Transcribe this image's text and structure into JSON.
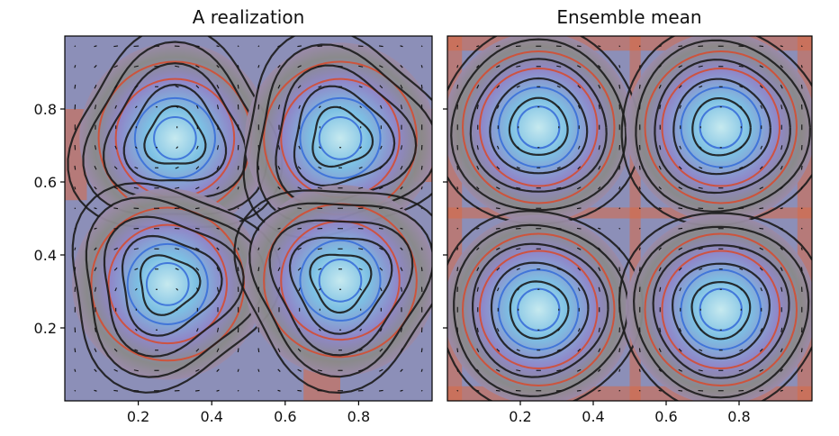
{
  "chart_data": [
    {
      "type": "heatmap",
      "title": "A realization",
      "xlim": [
        0,
        1
      ],
      "ylim": [
        0,
        1
      ],
      "xticks": [
        0.2,
        0.4,
        0.6,
        0.8
      ],
      "yticks": [
        0.2,
        0.4,
        0.6,
        0.8
      ],
      "xtick_labels": [
        "0.2",
        "0.4",
        "0.6",
        "0.8"
      ],
      "ytick_labels": [
        "0.2",
        "0.4",
        "0.6",
        "0.8"
      ],
      "overlays": [
        "filled contours",
        "contour lines",
        "streamlines",
        "velocity arrows"
      ],
      "vortex_centers": [
        [
          0.3,
          0.72
        ],
        [
          0.75,
          0.72
        ],
        [
          0.28,
          0.32
        ],
        [
          0.75,
          0.33
        ]
      ]
    },
    {
      "type": "heatmap",
      "title": "Ensemble mean",
      "xlim": [
        0,
        1
      ],
      "ylim": [
        0,
        1
      ],
      "xticks": [
        0.2,
        0.4,
        0.6,
        0.8
      ],
      "yticks": [
        0.2,
        0.4,
        0.6,
        0.8
      ],
      "xtick_labels": [
        "0.2",
        "0.4",
        "0.6",
        "0.8"
      ],
      "ytick_labels": [],
      "overlays": [
        "filled contours",
        "contour lines",
        "streamlines",
        "velocity arrows"
      ],
      "vortex_centers": [
        [
          0.25,
          0.75
        ],
        [
          0.75,
          0.75
        ],
        [
          0.25,
          0.25
        ],
        [
          0.75,
          0.25
        ]
      ]
    }
  ],
  "colors": {
    "low": "#bfe9ef",
    "mid_low": "#5aa7dd",
    "mid": "#8f87c9",
    "mid_high": "#8a8a8a",
    "high": "#e76a43",
    "streamline": "#1b1b1b"
  }
}
